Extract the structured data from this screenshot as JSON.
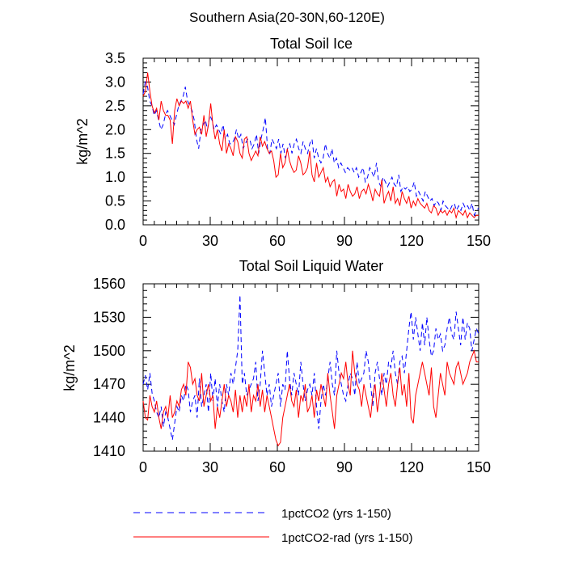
{
  "figure": {
    "suptitle": "Southern Asia(20-30N,60-120E)"
  },
  "legend": {
    "entries": [
      "1pctCO2 (yrs 1-150)",
      "1pctCO2-rad (yrs 1-150)"
    ],
    "placement": "bottom"
  },
  "colors": {
    "series_1pctCO2": "#0000ff",
    "series_1pctCO2_rad": "#ff0000",
    "axes": "#000000",
    "background": "#ffffff"
  },
  "chart_data": [
    {
      "type": "line",
      "title": "Total Soil Ice",
      "xlabel": "",
      "ylabel": "kg/m^2",
      "xlim": [
        0,
        150
      ],
      "ylim": [
        0,
        3.5
      ],
      "xticks": [
        0,
        30,
        60,
        90,
        120,
        150
      ],
      "xtick_labels": [
        "0",
        "30",
        "60",
        "90",
        "120",
        "150"
      ],
      "yticks": [
        0,
        0.5,
        1.0,
        1.5,
        2.0,
        2.5,
        3.0,
        3.5
      ],
      "ytick_labels": [
        "0.0",
        "0.5",
        "1.0",
        "1.5",
        "2.0",
        "2.5",
        "3.0",
        "3.5"
      ],
      "grid": false,
      "series": [
        {
          "name": "1pctCO2 (yrs 1-150)",
          "style": "dashed",
          "color": "#0000ff",
          "values": [
            2.75,
            3.0,
            2.9,
            2.6,
            2.5,
            2.3,
            2.4,
            2.2,
            2.0,
            2.1,
            2.3,
            2.4,
            2.3,
            2.2,
            2.1,
            2.3,
            2.5,
            2.6,
            2.7,
            2.9,
            2.6,
            2.5,
            2.4,
            2.2,
            1.8,
            1.6,
            2.0,
            2.1,
            2.2,
            2.0,
            2.3,
            2.2,
            2.0,
            2.1,
            2.0,
            1.9,
            2.1,
            1.8,
            1.9,
            1.7,
            1.7,
            1.8,
            2.0,
            1.8,
            1.9,
            1.6,
            1.7,
            1.8,
            1.8,
            1.6,
            1.7,
            1.9,
            1.5,
            1.8,
            2.0,
            2.25,
            1.6,
            1.5,
            1.8,
            1.7,
            1.6,
            1.8,
            1.5,
            1.7,
            1.4,
            1.6,
            1.7,
            1.5,
            1.7,
            1.8,
            1.6,
            1.5,
            1.75,
            1.6,
            1.5,
            1.7,
            1.8,
            1.4,
            1.6,
            1.4,
            1.3,
            1.4,
            1.7,
            1.5,
            1.4,
            1.6,
            1.3,
            1.4,
            1.2,
            1.3,
            1.2,
            1.1,
            1.2,
            1.15,
            1.2,
            1.1,
            1.2,
            1.0,
            1.1,
            1.2,
            0.9,
            1.0,
            1.2,
            1.1,
            1.0,
            1.3,
            0.9,
            0.8,
            1.0,
            0.9,
            0.8,
            0.9,
            1.0,
            0.85,
            0.8,
            1.05,
            0.7,
            0.8,
            0.75,
            0.8,
            0.7,
            0.75,
            0.9,
            0.6,
            0.7,
            0.6,
            0.5,
            0.7,
            0.6,
            0.5,
            0.55,
            0.4,
            0.5,
            0.45,
            0.3,
            0.5,
            0.4,
            0.35,
            0.3,
            0.4,
            0.45,
            0.3,
            0.4,
            0.3,
            0.45,
            0.35,
            0.4,
            0.3,
            0.45,
            0.2,
            0.3,
            0.35
          ]
        },
        {
          "name": "1pctCO2-rad (yrs 1-150)",
          "style": "solid",
          "color": "#ff0000",
          "values": [
            2.7,
            2.8,
            3.2,
            2.8,
            2.5,
            2.35,
            2.45,
            2.2,
            2.6,
            2.4,
            2.3,
            2.3,
            2.2,
            1.7,
            2.4,
            2.65,
            2.5,
            2.6,
            2.55,
            2.6,
            2.45,
            2.6,
            2.2,
            1.9,
            2.0,
            2.05,
            1.9,
            2.3,
            1.85,
            2.1,
            2.55,
            2.1,
            1.8,
            2.0,
            1.7,
            1.55,
            2.0,
            1.5,
            1.7,
            1.6,
            1.45,
            1.85,
            1.75,
            1.5,
            1.4,
            1.8,
            1.85,
            1.5,
            1.35,
            1.45,
            1.55,
            1.45,
            1.85,
            1.65,
            1.75,
            1.6,
            1.5,
            1.55,
            1.35,
            1.0,
            1.05,
            1.5,
            1.2,
            1.3,
            1.6,
            1.35,
            1.2,
            1.1,
            1.15,
            1.45,
            1.3,
            1.05,
            1.1,
            1.2,
            1.55,
            1.05,
            0.9,
            1.3,
            1.0,
            1.1,
            1.2,
            0.9,
            1.0,
            0.8,
            0.9,
            0.95,
            0.6,
            0.85,
            0.7,
            0.75,
            0.55,
            0.85,
            0.7,
            0.6,
            0.65,
            0.8,
            0.55,
            0.7,
            0.75,
            0.65,
            0.85,
            0.7,
            0.5,
            0.75,
            0.65,
            0.6,
            0.95,
            0.45,
            0.6,
            0.7,
            0.5,
            0.8,
            0.45,
            0.55,
            0.4,
            0.7,
            0.55,
            0.45,
            0.6,
            0.35,
            0.5,
            0.4,
            0.55,
            0.45,
            0.4,
            0.35,
            0.45,
            0.3,
            0.25,
            0.4,
            0.35,
            0.2,
            0.3,
            0.25,
            0.3,
            0.2,
            0.3,
            0.25,
            0.35,
            0.15,
            0.3,
            0.25,
            0.2,
            0.3,
            0.15,
            0.25,
            0.2,
            0.15,
            0.2,
            0.2
          ]
        }
      ]
    },
    {
      "type": "line",
      "title": "Total Soil Liquid Water",
      "xlabel": "",
      "ylabel": "kg/m^2",
      "xlim": [
        0,
        150
      ],
      "ylim": [
        1410,
        1560
      ],
      "xticks": [
        0,
        30,
        60,
        90,
        120,
        150
      ],
      "xtick_labels": [
        "0",
        "30",
        "60",
        "90",
        "120",
        "150"
      ],
      "yticks": [
        1410,
        1440,
        1470,
        1500,
        1530,
        1560
      ],
      "ytick_labels": [
        "1410",
        "1440",
        "1470",
        "1500",
        "1530",
        "1560"
      ],
      "grid": false,
      "series": [
        {
          "name": "1pctCO2 (yrs 1-150)",
          "style": "dashed",
          "color": "#0000ff",
          "values": [
            1470,
            1478,
            1465,
            1480,
            1462,
            1455,
            1445,
            1440,
            1450,
            1432,
            1445,
            1440,
            1430,
            1420,
            1435,
            1450,
            1445,
            1460,
            1455,
            1470,
            1465,
            1445,
            1455,
            1460,
            1440,
            1475,
            1450,
            1460,
            1470,
            1445,
            1480,
            1455,
            1475,
            1450,
            1470,
            1455,
            1445,
            1470,
            1460,
            1480,
            1470,
            1485,
            1500,
            1550,
            1470,
            1480,
            1460,
            1465,
            1470,
            1475,
            1490,
            1455,
            1470,
            1500,
            1480,
            1460,
            1470,
            1450,
            1460,
            1470,
            1480,
            1450,
            1470,
            1465,
            1500,
            1475,
            1460,
            1480,
            1470,
            1460,
            1490,
            1470,
            1455,
            1465,
            1470,
            1460,
            1480,
            1450,
            1430,
            1455,
            1470,
            1460,
            1475,
            1490,
            1470,
            1460,
            1500,
            1480,
            1470,
            1460,
            1455,
            1470,
            1480,
            1475,
            1460,
            1490,
            1470,
            1475,
            1480,
            1500,
            1490,
            1470,
            1450,
            1480,
            1490,
            1475,
            1460,
            1480,
            1470,
            1490,
            1485,
            1500,
            1480,
            1470,
            1490,
            1495,
            1480,
            1500,
            1520,
            1535,
            1510,
            1530,
            1515,
            1500,
            1525,
            1505,
            1530,
            1510,
            1495,
            1500,
            1520,
            1510,
            1515,
            1500,
            1505,
            1520,
            1530,
            1515,
            1510,
            1535,
            1520,
            1505,
            1530,
            1510,
            1525,
            1520,
            1500,
            1510,
            1520,
            1515
          ]
        },
        {
          "name": "1pctCO2-rad (yrs 1-150)",
          "style": "solid",
          "color": "#ff0000",
          "values": [
            1455,
            1440,
            1438,
            1460,
            1450,
            1445,
            1455,
            1440,
            1430,
            1445,
            1450,
            1440,
            1460,
            1440,
            1445,
            1455,
            1450,
            1465,
            1470,
            1460,
            1490,
            1485,
            1470,
            1475,
            1460,
            1455,
            1480,
            1450,
            1460,
            1470,
            1455,
            1460,
            1430,
            1450,
            1440,
            1455,
            1470,
            1450,
            1460,
            1455,
            1445,
            1465,
            1440,
            1460,
            1445,
            1460,
            1450,
            1470,
            1445,
            1460,
            1455,
            1470,
            1450,
            1465,
            1445,
            1460,
            1450,
            1440,
            1430,
            1420,
            1415,
            1418,
            1440,
            1450,
            1460,
            1470,
            1455,
            1450,
            1465,
            1440,
            1460,
            1455,
            1470,
            1445,
            1450,
            1460,
            1440,
            1465,
            1455,
            1470,
            1460,
            1450,
            1480,
            1460,
            1445,
            1430,
            1460,
            1470,
            1480,
            1475,
            1490,
            1470,
            1460,
            1500,
            1480,
            1470,
            1465,
            1450,
            1470,
            1460,
            1450,
            1440,
            1460,
            1470,
            1445,
            1460,
            1480,
            1465,
            1450,
            1470,
            1480,
            1460,
            1450,
            1470,
            1485,
            1460,
            1470,
            1450,
            1480,
            1440,
            1435,
            1460,
            1470,
            1480,
            1490,
            1480,
            1470,
            1460,
            1485,
            1450,
            1440,
            1460,
            1480,
            1470,
            1460,
            1490,
            1480,
            1475,
            1470,
            1485,
            1490,
            1480,
            1470,
            1475,
            1480,
            1490,
            1495,
            1500,
            1490,
            1490
          ]
        }
      ]
    }
  ]
}
